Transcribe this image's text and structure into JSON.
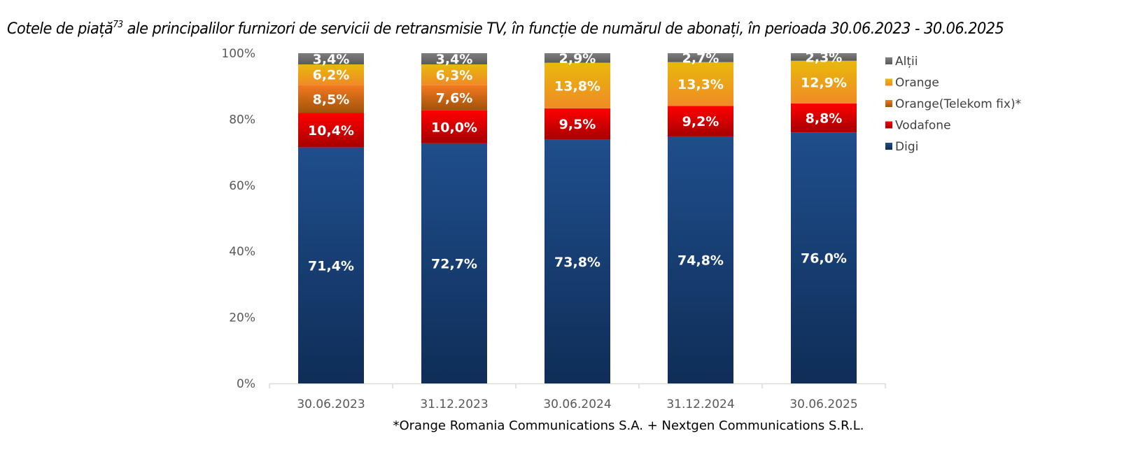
{
  "chart_data": {
    "type": "bar",
    "stacked": true,
    "percent_stacked": true,
    "title": "Cotele de piață ale principalilor furnizori de servicii de retransmisie TV, în funcție de numărul de abonați, în perioada 30.06.2023 - 30.06.2025",
    "title_main": "Cotele de piață",
    "title_footnote_ref": "73",
    "title_rest": " ale principalilor furnizori de servicii de retransmisie TV, în funcție de numărul de abonați, în perioada 30.06.2023 - 30.06.2025",
    "xlabel": "",
    "ylabel": "",
    "ylim": [
      0,
      100
    ],
    "yticks": [
      0,
      20,
      40,
      60,
      80,
      100
    ],
    "ytick_labels": [
      "0%",
      "20%",
      "40%",
      "60%",
      "80%",
      "100%"
    ],
    "grid": false,
    "legend_position": "right",
    "categories": [
      "30.06.2023",
      "31.12.2023",
      "30.06.2024",
      "31.12.2024",
      "30.06.2025"
    ],
    "series": [
      {
        "name": "Digi",
        "color": "#1F4E8C",
        "color_dark": "#0F2D57",
        "values": [
          71.4,
          72.7,
          73.8,
          74.8,
          76.0
        ],
        "labels": [
          "71,4%",
          "72,7%",
          "73,8%",
          "74,8%",
          "76,0%"
        ]
      },
      {
        "name": "Vodafone",
        "color": "#FF0000",
        "color_dark": "#A50000",
        "values": [
          10.4,
          10.0,
          9.5,
          9.2,
          8.8
        ],
        "labels": [
          "10,4%",
          "10,0%",
          "9,5%",
          "9,2%",
          "8,8%"
        ]
      },
      {
        "name": "Orange(Telekom fix)*",
        "color": "#F47A20",
        "color_dark": "#A0520A",
        "values": [
          8.5,
          7.6,
          0,
          0,
          0
        ],
        "labels": [
          "8,5%",
          "7,6%",
          "",
          "",
          ""
        ]
      },
      {
        "name": "Orange",
        "color": "#E8B90C",
        "color_dark": "#F08A25",
        "values": [
          6.2,
          6.3,
          13.8,
          13.3,
          12.9
        ],
        "labels": [
          "6,2%",
          "6,3%",
          "13,8%",
          "13,3%",
          "12,9%"
        ]
      },
      {
        "name": "Alții",
        "color": "#7F7F7F",
        "color_dark": "#5A5A5A",
        "values": [
          3.4,
          3.4,
          2.9,
          2.7,
          2.3
        ],
        "labels": [
          "3,4%",
          "3,4%",
          "2,9%",
          "2,7%",
          "2,3%"
        ]
      }
    ],
    "legend_order": [
      "Alții",
      "Orange",
      "Orange(Telekom fix)*",
      "Vodafone",
      "Digi"
    ],
    "footnote": "*Orange Romania Communications S.A. + Nextgen Communications S.R.L."
  }
}
